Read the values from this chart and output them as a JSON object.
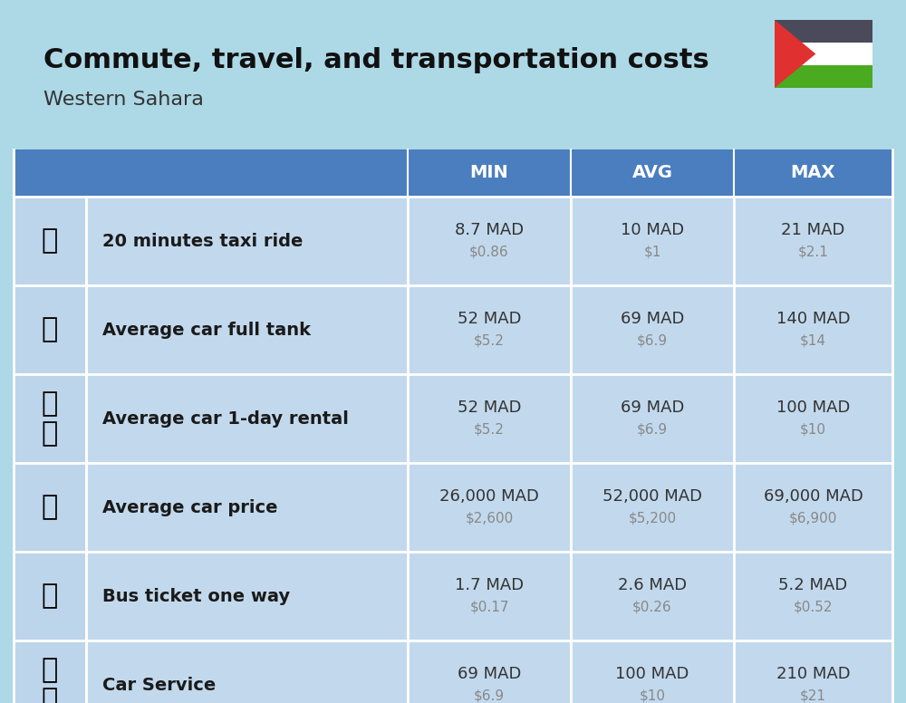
{
  "title": "Commute, travel, and transportation costs",
  "subtitle": "Western Sahara",
  "bg_color": "#add8e6",
  "header_bg": "#4a7ebf",
  "header_text_color": "#ffffff",
  "row_bg": "#c2d9ed",
  "icon_col_bg": "#bdd5ea",
  "label_col_bg": "#c2d9ed",
  "data_col_bg": "#c8ddf0",
  "divider_color": "#ffffff",
  "col_headers": [
    "MIN",
    "AVG",
    "MAX"
  ],
  "rows": [
    {
      "label": "20 minutes taxi ride",
      "min_mad": "8.7 MAD",
      "min_usd": "$0.86",
      "avg_mad": "10 MAD",
      "avg_usd": "$1",
      "max_mad": "21 MAD",
      "max_usd": "$2.1"
    },
    {
      "label": "Average car full tank",
      "min_mad": "52 MAD",
      "min_usd": "$5.2",
      "avg_mad": "69 MAD",
      "avg_usd": "$6.9",
      "max_mad": "140 MAD",
      "max_usd": "$14"
    },
    {
      "label": "Average car 1-day rental",
      "min_mad": "52 MAD",
      "min_usd": "$5.2",
      "avg_mad": "69 MAD",
      "avg_usd": "$6.9",
      "max_mad": "100 MAD",
      "max_usd": "$10"
    },
    {
      "label": "Average car price",
      "min_mad": "26,000 MAD",
      "min_usd": "$2,600",
      "avg_mad": "52,000 MAD",
      "avg_usd": "$5,200",
      "max_mad": "69,000 MAD",
      "max_usd": "$6,900"
    },
    {
      "label": "Bus ticket one way",
      "min_mad": "1.7 MAD",
      "min_usd": "$0.17",
      "avg_mad": "2.6 MAD",
      "avg_usd": "$0.26",
      "max_mad": "5.2 MAD",
      "max_usd": "$0.52"
    },
    {
      "label": "Car Service",
      "min_mad": "69 MAD",
      "min_usd": "$6.9",
      "avg_mad": "100 MAD",
      "avg_usd": "$10",
      "max_mad": "210 MAD",
      "max_usd": "$21"
    }
  ],
  "mad_color": "#333333",
  "usd_color": "#888888",
  "label_color": "#1a1a1a",
  "title_color": "#111111",
  "subtitle_color": "#333333",
  "flag_colors": {
    "black": "#4a4a5a",
    "white": "#ffffff",
    "green": "#4aaa20",
    "red": "#e03030"
  }
}
